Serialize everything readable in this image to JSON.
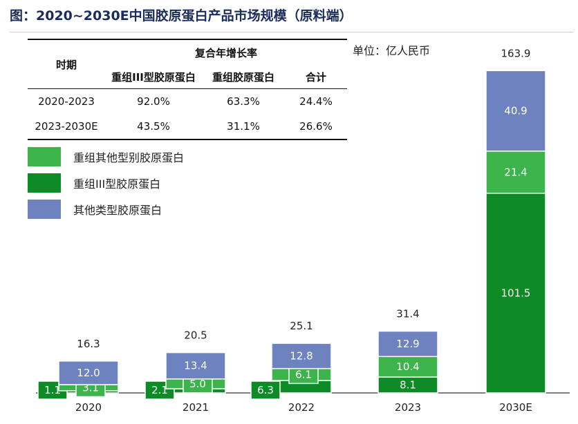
{
  "title": "图：2020~2030E中国胶原蛋白产品市场规模（原料端）",
  "unit": "单位：亿人民币",
  "table": {
    "period_header": "时期",
    "cagr_header": "复合年增长率",
    "col_headers": [
      "重组III型胶原蛋白",
      "重组胶原蛋白",
      "合计"
    ],
    "rows": [
      {
        "period": "2020-2023",
        "values": [
          "92.0%",
          "63.3%",
          "24.4%"
        ]
      },
      {
        "period": "2023-2030E",
        "values": [
          "43.5%",
          "31.1%",
          "26.6%"
        ]
      }
    ]
  },
  "colors": {
    "other_recombinant": "#3cb44b",
    "recombinant_iii": "#0e8a26",
    "other_types": "#6f82c0",
    "title": "#1a2b5c"
  },
  "chart_data": {
    "type": "bar",
    "stacked": true,
    "categories": [
      "2020",
      "2021",
      "2022",
      "2023",
      "2030E"
    ],
    "series": [
      {
        "name": "重组III型胶原蛋白",
        "color_key": "recombinant_iii",
        "values": [
          1.1,
          2.1,
          6.3,
          8.1,
          101.5
        ]
      },
      {
        "name": "重组其他型别胶原蛋白",
        "color_key": "other_recombinant",
        "values": [
          3.1,
          5.0,
          6.1,
          10.4,
          21.4
        ]
      },
      {
        "name": "其他类型胶原蛋白",
        "color_key": "other_types",
        "values": [
          12.0,
          13.4,
          12.8,
          12.9,
          40.9
        ]
      }
    ],
    "totals": [
      16.3,
      20.5,
      25.1,
      31.4,
      163.9
    ],
    "legend_order": [
      "重组其他型别胶原蛋白",
      "重组III型胶原蛋白",
      "其他类型胶原蛋白"
    ],
    "legend_position": "upper-left",
    "ylim": [
      0,
      163.9
    ],
    "grid": false
  }
}
